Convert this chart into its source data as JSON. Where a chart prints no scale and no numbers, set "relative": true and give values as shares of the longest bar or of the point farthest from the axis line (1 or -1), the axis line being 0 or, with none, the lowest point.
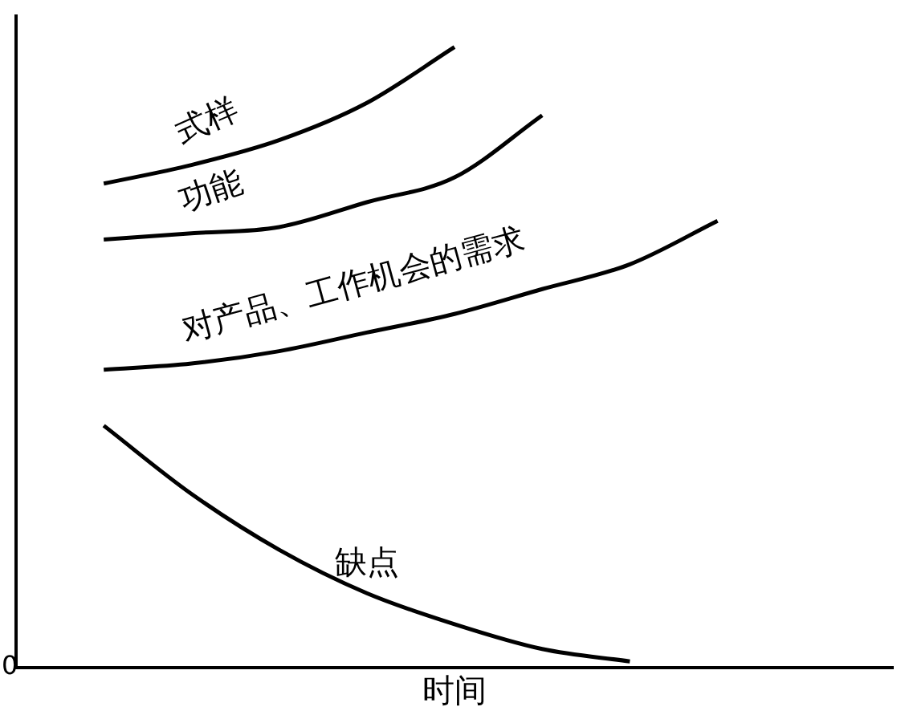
{
  "chart_data": {
    "type": "line",
    "relative": true,
    "xlabel": "时间",
    "annotations": [
      "0"
    ],
    "categories": [
      null,
      null,
      null,
      null,
      null,
      null,
      null,
      null,
      null,
      null,
      null
    ],
    "series": [
      {
        "name": "式样",
        "color": "#000000",
        "values": [
          null,
          0.78,
          0.81,
          0.85,
          0.91,
          1,
          null,
          null,
          null,
          null,
          null
        ]
      },
      {
        "name": "功能",
        "color": "#000000",
        "values": [
          null,
          0.69,
          0.7,
          0.71,
          0.75,
          0.79,
          0.89,
          null,
          null,
          null,
          null
        ]
      },
      {
        "name": "对产品、工作机会的需求",
        "color": "#000000",
        "values": [
          null,
          0.48,
          0.49,
          0.51,
          0.54,
          0.57,
          0.61,
          0.65,
          0.72,
          null,
          null
        ]
      },
      {
        "name": "缺点",
        "color": "#000000",
        "values": [
          null,
          0.39,
          0.28,
          0.19,
          0.12,
          0.07,
          0.03,
          0.01,
          null,
          null,
          null
        ]
      }
    ],
    "marker": "none",
    "line_style": "solid",
    "grid": false,
    "legend": false
  }
}
